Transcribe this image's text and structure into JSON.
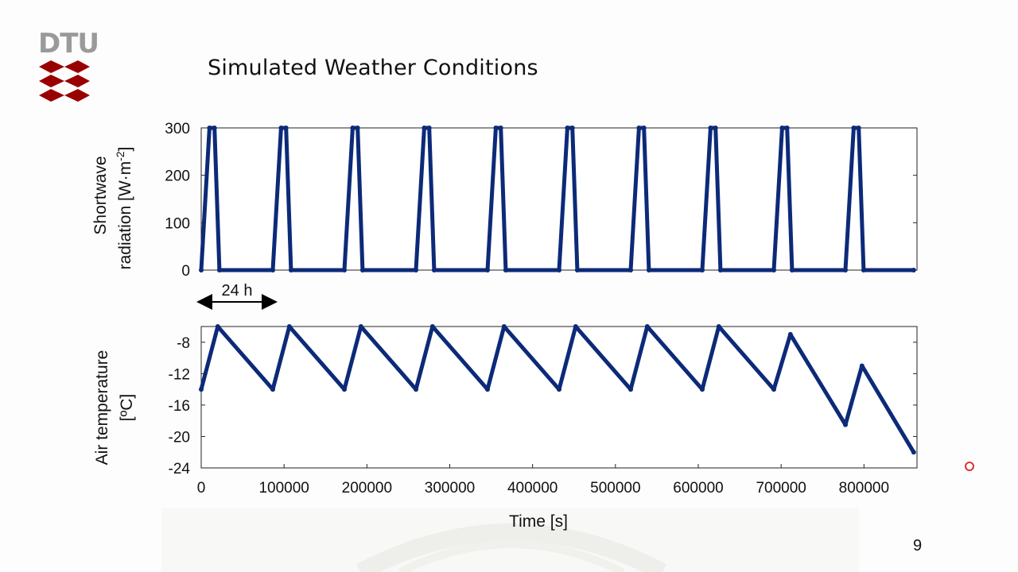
{
  "slide": {
    "title": "Simulated Weather Conditions",
    "page_number": "9",
    "logo_text": "DTU",
    "annotation": "24 h",
    "colors": {
      "series": "#0c2a78",
      "logo_red": "#990000",
      "logo_gray": "#9a9a9a"
    }
  },
  "chart_data": [
    {
      "type": "line",
      "ylabel_line1": "Shortwave",
      "ylabel_line2": "radiation [W·m",
      "ylabel_sup": "-2",
      "ylabel_end": "]",
      "xlim": [
        0,
        864000
      ],
      "ylim": [
        0,
        300
      ],
      "yticks": [
        0,
        100,
        200,
        300
      ],
      "xticks": [],
      "grid": false,
      "series": [
        {
          "x": [
            0,
            10000,
            16000,
            22000,
            86400,
            96400,
            102400,
            108400,
            172800,
            182800,
            188800,
            194800,
            259200,
            269200,
            275200,
            281200,
            345600,
            355600,
            361600,
            367600,
            432000,
            442000,
            448000,
            454000,
            518400,
            528400,
            534400,
            540400,
            604800,
            614800,
            620800,
            626800,
            691200,
            701200,
            707200,
            713200,
            777600,
            787600,
            793600,
            799600,
            860000
          ],
          "y": [
            0,
            300,
            300,
            0,
            0,
            300,
            300,
            0,
            0,
            300,
            300,
            0,
            0,
            300,
            300,
            0,
            0,
            300,
            300,
            0,
            0,
            300,
            300,
            0,
            0,
            300,
            300,
            0,
            0,
            300,
            300,
            0,
            0,
            300,
            300,
            0,
            0,
            300,
            300,
            0,
            0
          ]
        }
      ]
    },
    {
      "type": "line",
      "ylabel_line1": "Air temperature",
      "ylabel_line2": "[ºC]",
      "xlabel": "Time [s]",
      "xlim": [
        0,
        864000
      ],
      "ylim": [
        -24,
        -6
      ],
      "yticks": [
        -24,
        -20,
        -16,
        -12,
        -8
      ],
      "xticks": [
        0,
        100000,
        200000,
        300000,
        400000,
        500000,
        600000,
        700000,
        800000
      ],
      "grid": false,
      "series": [
        {
          "x": [
            0,
            20000,
            86400,
            106400,
            172800,
            192800,
            259200,
            279200,
            345600,
            365600,
            432000,
            452000,
            518400,
            538400,
            604800,
            624800,
            691200,
            711200,
            777600,
            797600,
            860000
          ],
          "y": [
            -14,
            -6,
            -14,
            -6,
            -14,
            -6,
            -14,
            -6,
            -14,
            -6,
            -14,
            -6,
            -14,
            -6,
            -14,
            -6,
            -14,
            -7,
            -18.5,
            -11,
            -22
          ]
        }
      ]
    }
  ]
}
